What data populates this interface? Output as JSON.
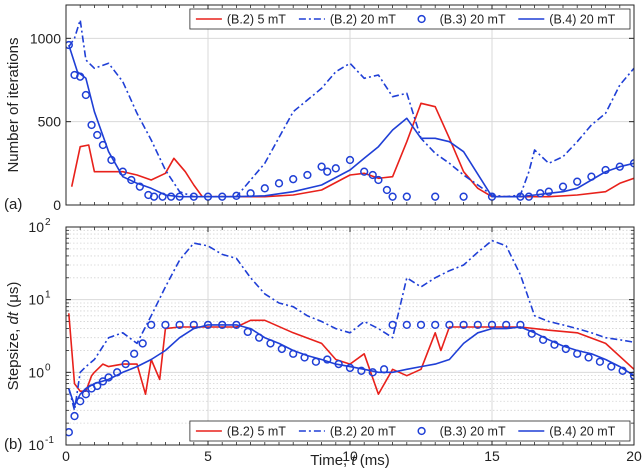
{
  "chart_data": [
    {
      "type": "line",
      "panel_label": "(a)",
      "xlim": [
        0,
        20
      ],
      "ylim": [
        0,
        1200
      ],
      "xticks": [
        0,
        5,
        10,
        15,
        20
      ],
      "yticks": [
        0,
        500,
        1000
      ],
      "ytick_labels": [
        "0",
        "500",
        "1000"
      ],
      "ylabel": "Number of iterations",
      "grid": true,
      "legend_position": "top-right",
      "series": [
        {
          "name": "(B.2) 5 mT",
          "color": "#e8211b",
          "dash": "solid",
          "marker": "none",
          "x": [
            0.2,
            0.5,
            0.8,
            1.0,
            1.5,
            2.0,
            2.5,
            3.0,
            3.5,
            3.8,
            4.2,
            4.5,
            4.8,
            5.0,
            6.0,
            7.0,
            8.0,
            9.0,
            10.0,
            10.5,
            11.0,
            11.5,
            12.0,
            12.5,
            13.0,
            13.5,
            14.0,
            14.5,
            15.0,
            16.0,
            17.0,
            18.0,
            19.0,
            19.5,
            20.0
          ],
          "y": [
            110,
            350,
            360,
            200,
            200,
            200,
            180,
            150,
            190,
            280,
            200,
            120,
            50,
            50,
            50,
            50,
            60,
            90,
            180,
            190,
            160,
            170,
            380,
            610,
            590,
            400,
            200,
            100,
            50,
            50,
            50,
            60,
            80,
            130,
            160
          ]
        },
        {
          "name": "(B.2) 20 mT",
          "color": "#1f3fd6",
          "dash": "dashdot",
          "marker": "none",
          "x": [
            0.1,
            0.3,
            0.5,
            0.7,
            1.0,
            1.5,
            2.0,
            2.5,
            3.0,
            3.5,
            4.0,
            4.5,
            5.0,
            6.0,
            7.0,
            8.0,
            9.0,
            9.5,
            10.0,
            10.5,
            11.0,
            11.5,
            12.0,
            12.5,
            13.0,
            13.5,
            14.0,
            15.0,
            15.5,
            16.0,
            16.3,
            16.5,
            17.0,
            17.5,
            18.0,
            18.5,
            19.0,
            19.5,
            20.0
          ],
          "y": [
            950,
            1000,
            1110,
            870,
            820,
            850,
            740,
            550,
            390,
            210,
            80,
            50,
            50,
            50,
            250,
            560,
            700,
            800,
            850,
            760,
            780,
            650,
            670,
            400,
            310,
            250,
            180,
            60,
            50,
            60,
            200,
            330,
            250,
            290,
            380,
            480,
            550,
            720,
            820
          ]
        },
        {
          "name": "(B.3) 20 mT",
          "color": "#1f3fd6",
          "dash": "none",
          "marker": "circle",
          "x": [
            0.1,
            0.3,
            0.5,
            0.7,
            0.9,
            1.1,
            1.3,
            1.6,
            2.0,
            2.3,
            2.6,
            2.9,
            3.1,
            3.4,
            3.7,
            4.0,
            4.5,
            5.0,
            5.5,
            6.0,
            6.5,
            7.0,
            7.5,
            8.0,
            8.5,
            9.0,
            9.2,
            9.5,
            10.0,
            10.5,
            10.8,
            11.0,
            11.3,
            11.5,
            12.0,
            13.0,
            14.0,
            15.0,
            16.0,
            16.3,
            16.7,
            17.0,
            17.5,
            18.0,
            18.5,
            19.0,
            19.5,
            20.0
          ],
          "y": [
            960,
            780,
            770,
            660,
            480,
            420,
            360,
            270,
            200,
            150,
            110,
            60,
            50,
            50,
            50,
            50,
            50,
            50,
            50,
            55,
            70,
            100,
            130,
            155,
            180,
            230,
            200,
            220,
            270,
            200,
            180,
            150,
            90,
            50,
            50,
            50,
            50,
            50,
            50,
            50,
            70,
            80,
            110,
            140,
            170,
            210,
            230,
            250
          ]
        },
        {
          "name": "(B.4) 20 mT",
          "color": "#1f3fd6",
          "dash": "solid",
          "marker": "none",
          "x": [
            0.1,
            0.4,
            0.7,
            1.0,
            1.5,
            2.0,
            2.5,
            3.0,
            3.5,
            4.0,
            5.0,
            6.0,
            7.0,
            8.0,
            9.0,
            10.0,
            10.5,
            11.0,
            11.5,
            12.0,
            12.5,
            13.0,
            13.5,
            14.0,
            15.0,
            16.0,
            16.5,
            17.0,
            17.5,
            18.0,
            18.5,
            19.0,
            19.5,
            20.0
          ],
          "y": [
            960,
            800,
            760,
            560,
            320,
            170,
            130,
            100,
            60,
            50,
            50,
            50,
            55,
            80,
            120,
            210,
            280,
            350,
            450,
            520,
            400,
            400,
            380,
            320,
            50,
            50,
            60,
            70,
            80,
            100,
            150,
            200,
            230,
            250
          ]
        }
      ]
    },
    {
      "type": "line",
      "panel_label": "(b)",
      "xlim": [
        0,
        20
      ],
      "ylim": [
        0.1,
        100
      ],
      "yscale": "log",
      "xticks": [
        0,
        5,
        10,
        15,
        20
      ],
      "yticks": [
        0.1,
        1,
        10,
        100
      ],
      "ylabel": "Stepsize, dt (μs)",
      "ylabel_parts": [
        "Stepsize, ",
        "dt",
        " (",
        "μ",
        "s)"
      ],
      "xlabel": "Time, t (ms)",
      "xlabel_parts": [
        "Time, ",
        "t",
        " (ms)"
      ],
      "grid": true,
      "legend_position": "bottom-right",
      "series": [
        {
          "name": "(B.2) 5 mT",
          "color": "#e8211b",
          "dash": "solid",
          "marker": "none",
          "x": [
            0.1,
            0.3,
            0.5,
            0.7,
            0.9,
            1.0,
            1.3,
            1.5,
            2.0,
            2.5,
            2.8,
            3.0,
            3.3,
            3.5,
            4.0,
            5.0,
            6.0,
            6.5,
            7.0,
            8.0,
            9.0,
            9.5,
            10.0,
            10.5,
            11.0,
            11.5,
            12.0,
            12.5,
            13.0,
            13.2,
            13.5,
            14.0,
            15.0,
            16.0,
            17.0,
            18.0,
            19.0,
            20.0
          ],
          "y": [
            6.5,
            0.7,
            0.55,
            0.55,
            0.9,
            1.0,
            1.3,
            1.2,
            1.3,
            1.3,
            0.5,
            1.5,
            0.8,
            4.0,
            4.2,
            4.2,
            4.2,
            5.2,
            5.2,
            3.5,
            2.5,
            1.5,
            1.3,
            1.8,
            0.5,
            1.1,
            0.9,
            1.1,
            3.5,
            2.0,
            4.2,
            4.2,
            4.2,
            4.2,
            3.8,
            3.5,
            2.5,
            1.1
          ]
        },
        {
          "name": "(B.2) 20 mT",
          "color": "#1f3fd6",
          "dash": "dashdot",
          "marker": "none",
          "x": [
            0.1,
            0.3,
            0.5,
            0.7,
            1.0,
            1.5,
            2.0,
            2.5,
            3.0,
            3.5,
            4.0,
            4.5,
            5.0,
            5.5,
            6.0,
            6.5,
            7.0,
            7.5,
            8.0,
            8.5,
            9.0,
            9.5,
            10.0,
            10.5,
            11.0,
            11.5,
            12.0,
            12.5,
            13.0,
            13.5,
            14.0,
            14.5,
            15.0,
            15.5,
            16.0,
            16.5,
            17.0,
            17.5,
            18.0,
            18.5,
            19.0,
            19.5,
            20.0
          ],
          "y": [
            0.6,
            0.3,
            1.0,
            1.2,
            1.5,
            3.0,
            3.5,
            2.5,
            6.0,
            15,
            35,
            60,
            55,
            42,
            37,
            20,
            12,
            9,
            8,
            6,
            5,
            4,
            3.5,
            5,
            4,
            3,
            20,
            15,
            20,
            25,
            30,
            45,
            65,
            55,
            22,
            6,
            5,
            4.5,
            4,
            3.5,
            3,
            2.8,
            2.6
          ]
        },
        {
          "name": "(B.3) 20 mT",
          "color": "#1f3fd6",
          "dash": "none",
          "marker": "circle",
          "x": [
            0.1,
            0.3,
            0.5,
            0.7,
            0.9,
            1.1,
            1.3,
            1.5,
            1.8,
            2.1,
            2.4,
            2.7,
            3.0,
            3.5,
            4.0,
            4.5,
            5.0,
            5.5,
            6.0,
            6.4,
            6.8,
            7.2,
            7.6,
            8.0,
            8.4,
            8.8,
            9.2,
            9.6,
            10.0,
            10.4,
            10.8,
            11.2,
            11.5,
            12.0,
            12.5,
            13.0,
            13.5,
            14.0,
            14.5,
            15.0,
            15.5,
            16.0,
            16.4,
            16.8,
            17.2,
            17.6,
            18.0,
            18.4,
            18.8,
            19.2,
            19.6,
            20.0
          ],
          "y": [
            0.15,
            0.25,
            0.4,
            0.5,
            0.6,
            0.65,
            0.75,
            0.85,
            1.0,
            1.3,
            1.8,
            2.5,
            4.5,
            4.5,
            4.5,
            4.5,
            4.5,
            4.5,
            4.5,
            3.6,
            3.0,
            2.5,
            2.1,
            1.8,
            1.6,
            1.4,
            1.5,
            1.3,
            1.15,
            1.05,
            1.0,
            1.1,
            4.5,
            4.5,
            4.5,
            4.5,
            4.5,
            4.5,
            4.5,
            4.5,
            4.5,
            4.5,
            3.4,
            2.8,
            2.4,
            2.1,
            1.8,
            1.6,
            1.4,
            1.2,
            1.05,
            0.9
          ]
        },
        {
          "name": "(B.4) 20 mT",
          "color": "#1f3fd6",
          "dash": "solid",
          "marker": "none",
          "x": [
            0.1,
            0.3,
            0.5,
            0.7,
            1.0,
            1.5,
            2.0,
            2.5,
            3.0,
            3.5,
            4.0,
            4.5,
            5.0,
            5.5,
            6.0,
            6.5,
            7.0,
            7.5,
            8.0,
            8.5,
            9.0,
            9.5,
            10.0,
            10.5,
            11.0,
            11.5,
            12.0,
            12.5,
            13.0,
            13.5,
            14.0,
            14.5,
            15.0,
            15.5,
            16.0,
            16.5,
            17.0,
            17.5,
            18.0,
            18.5,
            19.0,
            19.5,
            20.0
          ],
          "y": [
            0.6,
            0.35,
            0.5,
            0.6,
            0.7,
            0.8,
            1.0,
            1.2,
            1.5,
            2.0,
            3.0,
            4.0,
            4.5,
            4.5,
            4.5,
            4.0,
            3.0,
            2.5,
            2.0,
            1.7,
            1.5,
            1.3,
            1.2,
            1.1,
            1.0,
            1.0,
            1.1,
            1.2,
            1.3,
            1.5,
            2.5,
            3.5,
            4.0,
            4.0,
            4.2,
            3.5,
            2.8,
            2.3,
            2.0,
            1.8,
            1.5,
            1.2,
            0.9
          ]
        }
      ]
    }
  ]
}
